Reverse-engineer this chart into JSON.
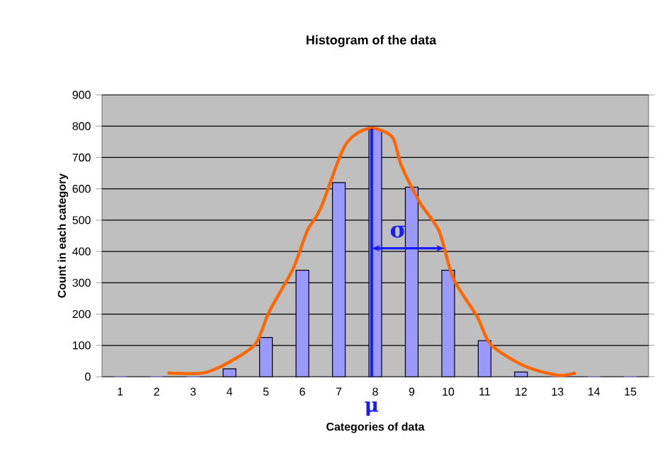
{
  "chart_data": {
    "type": "bar",
    "title": "Histogram of the data",
    "xlabel": "Categories of data",
    "ylabel": "Count in each category",
    "x": [
      1,
      2,
      3,
      4,
      5,
      6,
      7,
      8,
      9,
      10,
      11,
      12,
      13,
      14,
      15
    ],
    "xlim": [
      0.5,
      15.5
    ],
    "xticks": [
      1,
      2,
      3,
      4,
      5,
      6,
      7,
      8,
      9,
      10,
      11,
      12,
      13,
      14,
      15
    ],
    "ylim": [
      0,
      900
    ],
    "yticks": [
      0,
      100,
      200,
      300,
      400,
      500,
      600,
      700,
      800,
      900
    ],
    "grid": "y",
    "series": [
      {
        "color": "#9999ff",
        "values": [
          0,
          0,
          0,
          25,
          125,
          340,
          620,
          790,
          605,
          340,
          115,
          15,
          0,
          0,
          0
        ]
      },
      {
        "type": "line",
        "color": "#ff6600",
        "marker": "none",
        "x": [
          2.3,
          3.28,
          3.92,
          4.7,
          5.09,
          5.74,
          6.13,
          6.51,
          7.16,
          7.81,
          8.46,
          8.71,
          9.23,
          9.75,
          10.14,
          10.79,
          11.17,
          12.08,
          12.99,
          13.5
        ],
        "values": [
          12,
          12,
          42,
          103,
          208,
          344,
          465,
          540,
          736,
          793,
          766,
          676,
          555,
          465,
          314,
          193,
          103,
          35,
          5,
          12
        ]
      }
    ],
    "ref_lines": [
      {
        "axis": "x",
        "value": 7.9,
        "label": "μ",
        "color": "#1a1aff"
      }
    ],
    "annotations": [
      {
        "text": "σ",
        "x": 8.9,
        "y": 410
      }
    ]
  }
}
